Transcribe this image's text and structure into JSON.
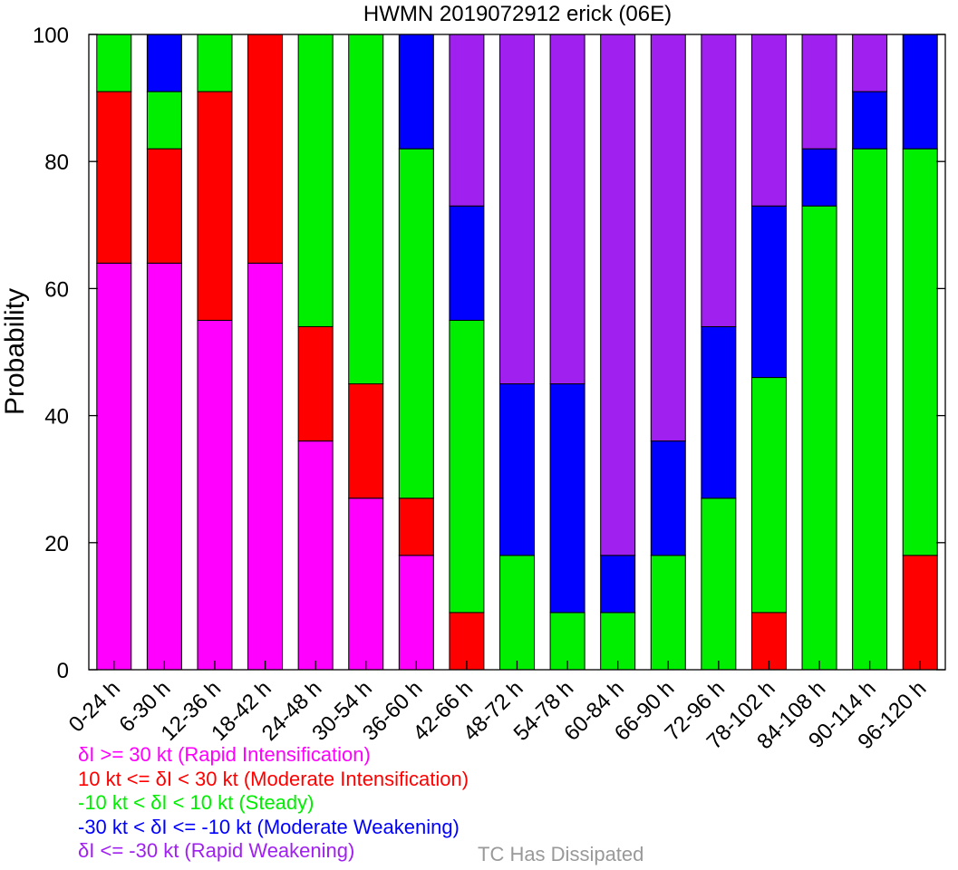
{
  "chart_data": {
    "type": "bar",
    "stacked": true,
    "title": "HWMN 2019072912 erick (06E)",
    "xlabel": "",
    "ylabel": "Probability",
    "ylim": [
      0,
      100
    ],
    "yticks": [
      0,
      20,
      40,
      60,
      80,
      100
    ],
    "grid": false,
    "categories": [
      "0-24 h",
      "6-30 h",
      "12-36 h",
      "18-42 h",
      "24-48 h",
      "30-54 h",
      "36-60 h",
      "42-66 h",
      "48-72 h",
      "54-78 h",
      "60-84 h",
      "66-90 h",
      "72-96 h",
      "78-102 h",
      "84-108 h",
      "90-114 h",
      "96-120 h"
    ],
    "series": [
      {
        "name": "δI >= 30 kt (Rapid Intensification)",
        "color": "#ff00ff",
        "values": [
          64,
          64,
          55,
          64,
          36,
          27,
          18,
          0,
          0,
          0,
          0,
          0,
          0,
          0,
          0,
          0,
          0
        ]
      },
      {
        "name": "10 kt <= δI < 30 kt (Moderate Intensification)",
        "color": "#ff0000",
        "values": [
          27,
          18,
          36,
          36,
          18,
          18,
          9,
          9,
          0,
          0,
          0,
          0,
          0,
          9,
          0,
          0,
          18
        ]
      },
      {
        "name": "-10 kt < δI < 10 kt (Steady)",
        "color": "#00ee00",
        "values": [
          9,
          9,
          9,
          0,
          46,
          55,
          55,
          46,
          18,
          9,
          9,
          18,
          27,
          37,
          73,
          82,
          64
        ]
      },
      {
        "name": "-30 kt < δI <= -10 kt (Moderate Weakening)",
        "color": "#0000ff",
        "values": [
          0,
          9,
          0,
          0,
          0,
          0,
          18,
          18,
          27,
          36,
          9,
          18,
          27,
          27,
          9,
          9,
          18
        ]
      },
      {
        "name": "δI <= -30 kt (Rapid Weakening)",
        "color": "#a020f0",
        "values": [
          0,
          0,
          0,
          0,
          0,
          0,
          0,
          27,
          55,
          55,
          82,
          64,
          46,
          27,
          18,
          9,
          0
        ]
      }
    ],
    "annotations": [
      {
        "text": "TC Has Dissipated",
        "color": "#999999"
      }
    ]
  }
}
